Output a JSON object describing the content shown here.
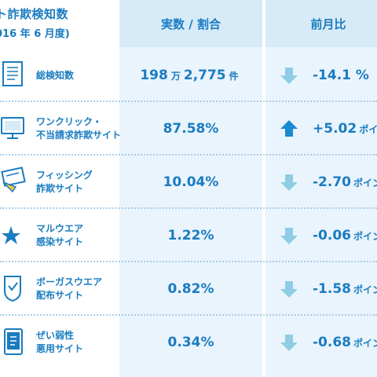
{
  "header": {
    "title_line1": "ト詐欺検知数",
    "title_line2": "016 年 6 月度)",
    "col_ratio": "実数 / 割合",
    "col_prev": "前月比"
  },
  "colors": {
    "text": "#1a7cc0",
    "header_bg": "#d6eaf8",
    "column_bg": "#eaf4fc",
    "arrow_down": "#8fcde6",
    "arrow_up": "#1a8ad4"
  },
  "rows": [
    {
      "icon": "document-icon",
      "label_line1": "総検知数",
      "label_line2": "",
      "value_main": "198",
      "value_unit1": "万",
      "value_main2": "2,775",
      "value_unit2": "件",
      "trend": "down",
      "change": "-14.1 %",
      "change_unit": ""
    },
    {
      "icon": "monitor-icon",
      "label_line1": "ワンクリック・",
      "label_line2": "不当請求詐欺サイト",
      "value_main": "87.58%",
      "trend": "up",
      "change": "+5.02",
      "change_unit": "ポイン"
    },
    {
      "icon": "fishing-hook-icon",
      "label_line1": "フィッシング",
      "label_line2": "詐欺サイト",
      "value_main": "10.04%",
      "trend": "down",
      "change": "-2.70",
      "change_unit": "ポイン"
    },
    {
      "icon": "malware-star-icon",
      "label_line1": "マルウエア",
      "label_line2": "感染サイト",
      "value_main": "1.22%",
      "trend": "down",
      "change": "-0.06",
      "change_unit": "ポイン"
    },
    {
      "icon": "shield-icon",
      "label_line1": "ボーガスウエア",
      "label_line2": "配布サイト",
      "value_main": "0.82%",
      "trend": "down",
      "change": "-1.58",
      "change_unit": "ポイン"
    },
    {
      "icon": "tablet-icon",
      "label_line1": "ぜい弱性",
      "label_line2": "悪用サイト",
      "value_main": "0.34%",
      "trend": "down",
      "change": "-0.68",
      "change_unit": "ポイン"
    }
  ]
}
